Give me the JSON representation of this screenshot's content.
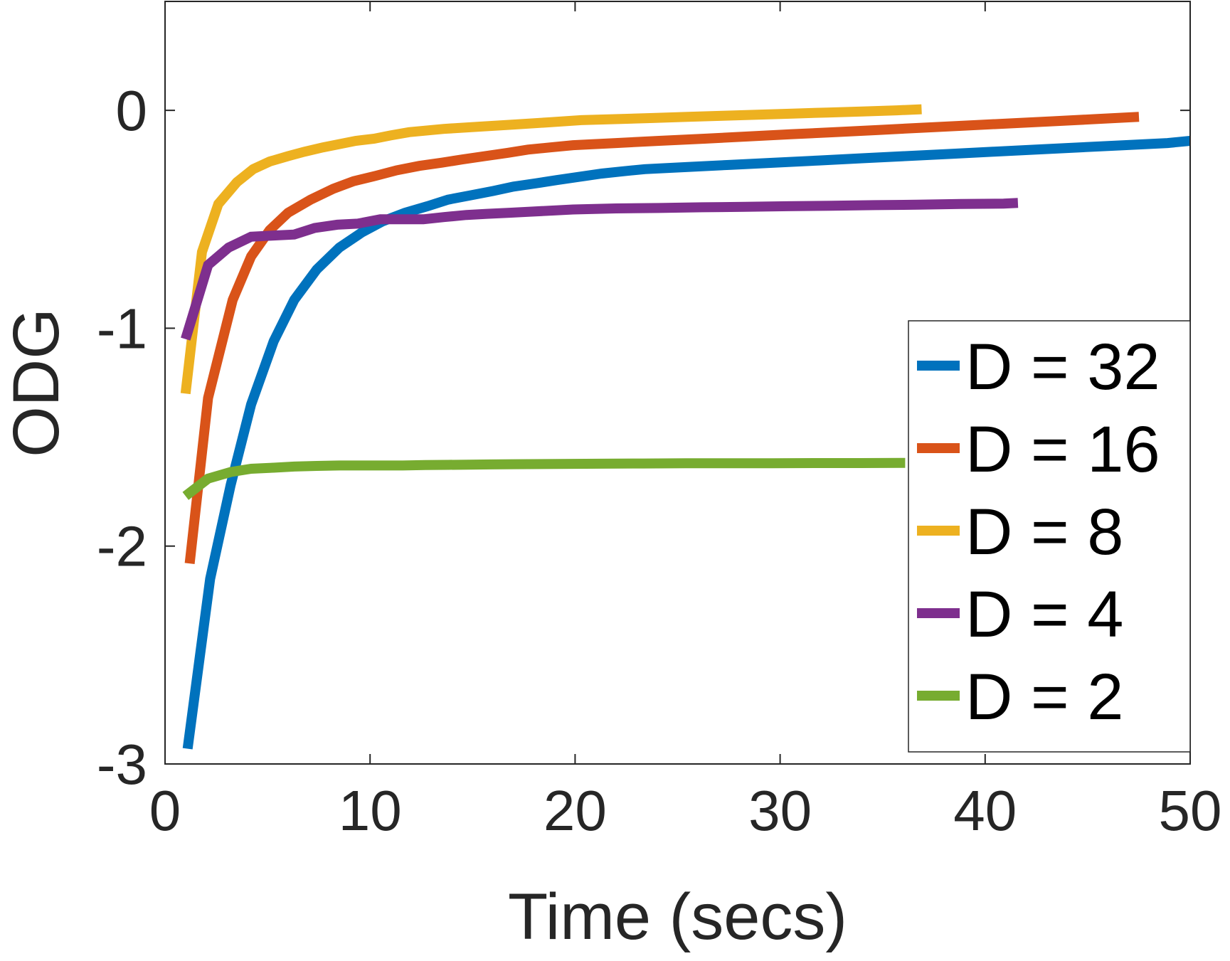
{
  "chart_data": {
    "type": "line",
    "title": "",
    "xlabel": "Time (secs)",
    "ylabel": "ODG",
    "xlim": [
      0,
      50
    ],
    "ylim": [
      -3,
      0.5
    ],
    "xticks": [
      0,
      10,
      20,
      30,
      40,
      50
    ],
    "yticks": [
      -3,
      -2,
      -1,
      0
    ],
    "xtick_labels": [
      "0",
      "10",
      "20",
      "30",
      "40",
      "50"
    ],
    "ytick_labels": [
      "-3",
      "-2",
      "-1",
      "0"
    ],
    "grid": false,
    "legend_position": "bottom-right",
    "series": [
      {
        "name": "D = 32",
        "color": "#0072BD",
        "x": [
          1.1,
          2.2,
          3.2,
          4.2,
          5.3,
          6.3,
          7.4,
          8.5,
          9.6,
          10.6,
          11.7,
          12.8,
          13.8,
          14.9,
          16.0,
          17.0,
          18.1,
          19.1,
          20.2,
          21.3,
          22.3,
          23.4,
          25.5,
          27.6,
          29.7,
          31.9,
          34.0,
          36.1,
          38.3,
          40.4,
          42.5,
          44.6,
          46.8,
          48.9,
          50.0
        ],
        "values": [
          -2.93,
          -2.15,
          -1.72,
          -1.35,
          -1.06,
          -0.87,
          -0.73,
          -0.63,
          -0.56,
          -0.51,
          -0.47,
          -0.44,
          -0.41,
          -0.39,
          -0.37,
          -0.35,
          -0.335,
          -0.32,
          -0.305,
          -0.29,
          -0.28,
          -0.27,
          -0.26,
          -0.25,
          -0.24,
          -0.23,
          -0.22,
          -0.21,
          -0.2,
          -0.19,
          -0.18,
          -0.17,
          -0.16,
          -0.15,
          -0.14
        ]
      },
      {
        "name": "D = 16",
        "color": "#D95319",
        "x": [
          1.2,
          2.1,
          3.3,
          4.2,
          5.1,
          6.0,
          7.1,
          8.2,
          9.2,
          10.3,
          11.3,
          12.4,
          13.5,
          14.5,
          15.6,
          16.7,
          17.7,
          18.8,
          19.9,
          22.0,
          24.1,
          26.3,
          28.4,
          30.5,
          32.7,
          34.8,
          36.9,
          39.0,
          41.2,
          43.3,
          45.4,
          47.5
        ],
        "values": [
          -2.08,
          -1.32,
          -0.87,
          -0.67,
          -0.55,
          -0.47,
          -0.41,
          -0.36,
          -0.325,
          -0.3,
          -0.275,
          -0.255,
          -0.24,
          -0.225,
          -0.21,
          -0.195,
          -0.18,
          -0.17,
          -0.16,
          -0.15,
          -0.14,
          -0.13,
          -0.12,
          -0.11,
          -0.1,
          -0.09,
          -0.08,
          -0.07,
          -0.06,
          -0.05,
          -0.04,
          -0.03
        ]
      },
      {
        "name": "D = 8",
        "color": "#EDB120",
        "x": [
          1.0,
          1.8,
          2.6,
          3.5,
          4.3,
          5.1,
          6.0,
          6.8,
          7.7,
          8.5,
          9.3,
          10.2,
          11.0,
          11.9,
          13.6,
          15.3,
          17.0,
          18.7,
          20.3,
          22.1,
          23.8,
          25.5,
          27.2,
          28.9,
          30.6,
          32.3,
          34.0,
          35.7,
          36.9
        ],
        "values": [
          -1.3,
          -0.65,
          -0.43,
          -0.33,
          -0.27,
          -0.235,
          -0.21,
          -0.19,
          -0.17,
          -0.155,
          -0.14,
          -0.13,
          -0.115,
          -0.1,
          -0.085,
          -0.075,
          -0.065,
          -0.055,
          -0.045,
          -0.04,
          -0.035,
          -0.03,
          -0.025,
          -0.02,
          -0.015,
          -0.01,
          -0.005,
          0.0,
          0.005
        ]
      },
      {
        "name": "D = 4",
        "color": "#7E2F8E",
        "x": [
          1.0,
          2.1,
          3.1,
          4.2,
          5.2,
          6.3,
          7.3,
          8.4,
          9.4,
          10.5,
          11.5,
          12.6,
          13.6,
          14.7,
          15.7,
          16.8,
          17.8,
          18.9,
          19.9,
          22.0,
          24.1,
          26.2,
          28.3,
          30.4,
          32.5,
          34.6,
          36.7,
          38.8,
          40.9,
          41.6
        ],
        "values": [
          -1.05,
          -0.71,
          -0.63,
          -0.58,
          -0.575,
          -0.57,
          -0.54,
          -0.525,
          -0.52,
          -0.5,
          -0.5,
          -0.5,
          -0.49,
          -0.48,
          -0.475,
          -0.47,
          -0.465,
          -0.46,
          -0.455,
          -0.45,
          -0.448,
          -0.445,
          -0.443,
          -0.44,
          -0.438,
          -0.435,
          -0.433,
          -0.43,
          -0.428,
          -0.425
        ]
      },
      {
        "name": "D = 2",
        "color": "#77AC30",
        "x": [
          1.0,
          2.1,
          3.2,
          4.2,
          5.3,
          6.3,
          7.4,
          8.5,
          9.5,
          10.6,
          11.6,
          12.7,
          13.8,
          14.8,
          15.9,
          17.0,
          19.1,
          21.2,
          23.3,
          25.4,
          27.5,
          29.6,
          31.8,
          33.9,
          35.9,
          36.1
        ],
        "values": [
          -1.77,
          -1.69,
          -1.66,
          -1.645,
          -1.64,
          -1.635,
          -1.632,
          -1.63,
          -1.63,
          -1.63,
          -1.63,
          -1.628,
          -1.627,
          -1.626,
          -1.625,
          -1.624,
          -1.623,
          -1.622,
          -1.621,
          -1.62,
          -1.62,
          -1.62,
          -1.619,
          -1.619,
          -1.618,
          -1.618
        ]
      }
    ]
  }
}
